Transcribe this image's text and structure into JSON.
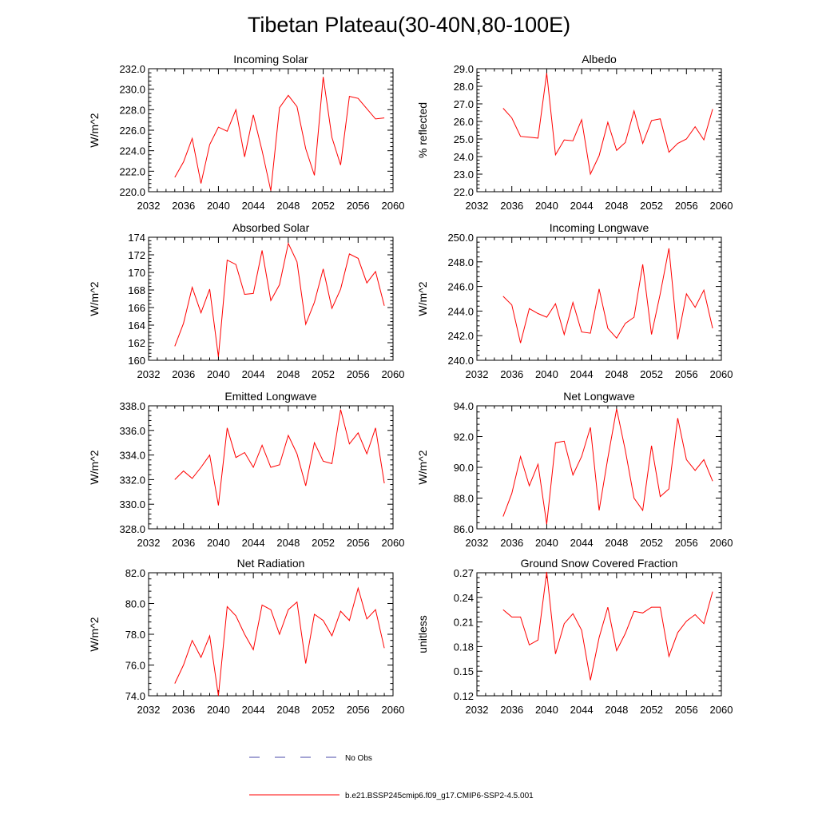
{
  "figure": {
    "title": "Tibetan Plateau(30-40N,80-100E)",
    "legend": [
      {
        "label": "No Obs",
        "color": "#4a4aa8",
        "dash": "dashed"
      },
      {
        "label": "b.e21.BSSP245cmip6.f09_g17.CMIP6-SSP2-4.5.001",
        "color": "#ff0000",
        "dash": "solid"
      }
    ]
  },
  "chart_data": [
    {
      "type": "line",
      "title": "Incoming Solar",
      "ylabel": "W/m^2",
      "xlim": [
        2032,
        2060
      ],
      "ylim": [
        220,
        232
      ],
      "xticks": [
        2032,
        2036,
        2040,
        2044,
        2048,
        2052,
        2056,
        2060
      ],
      "xtick_labels": [
        "2032",
        "2036",
        "2040",
        "2044",
        "2048",
        "2052",
        "2056",
        "2060"
      ],
      "yticks": [
        220,
        222,
        224,
        226,
        228,
        230,
        232
      ],
      "ytick_labels": [
        "220.0",
        "222.0",
        "224.0",
        "226.0",
        "228.0",
        "230.0",
        "232.0"
      ],
      "x": [
        2035,
        2036,
        2037,
        2038,
        2039,
        2040,
        2041,
        2042,
        2043,
        2044,
        2045,
        2046,
        2047,
        2048,
        2049,
        2050,
        2051,
        2052,
        2053,
        2054,
        2055,
        2056,
        2057,
        2058,
        2059
      ],
      "series": [
        {
          "color": "#ff0000",
          "values": [
            221.4,
            222.9,
            225.2,
            220.8,
            224.6,
            226.3,
            225.9,
            228.0,
            223.4,
            227.5,
            224.0,
            220.1,
            228.2,
            229.4,
            228.3,
            224.2,
            221.6,
            231.2,
            225.3,
            222.6,
            229.3,
            229.1,
            228.1,
            227.1,
            227.2
          ]
        }
      ]
    },
    {
      "type": "line",
      "title": "Albedo",
      "ylabel": "% reflected",
      "xlim": [
        2032,
        2060
      ],
      "ylim": [
        22,
        29
      ],
      "xticks": [
        2032,
        2036,
        2040,
        2044,
        2048,
        2052,
        2056,
        2060
      ],
      "xtick_labels": [
        "2032",
        "2036",
        "2040",
        "2044",
        "2048",
        "2052",
        "2056",
        "2060"
      ],
      "yticks": [
        22,
        23,
        24,
        25,
        26,
        27,
        28,
        29
      ],
      "ytick_labels": [
        "22.0",
        "23.0",
        "24.0",
        "25.0",
        "26.0",
        "27.0",
        "28.0",
        "29.0"
      ],
      "x": [
        2035,
        2036,
        2037,
        2038,
        2039,
        2040,
        2041,
        2042,
        2043,
        2044,
        2045,
        2046,
        2047,
        2048,
        2049,
        2050,
        2051,
        2052,
        2053,
        2054,
        2055,
        2056,
        2057,
        2058,
        2059
      ],
      "series": [
        {
          "color": "#ff0000",
          "values": [
            26.75,
            26.2,
            25.15,
            25.1,
            25.05,
            28.75,
            24.1,
            24.95,
            24.9,
            26.1,
            23.0,
            24.05,
            25.95,
            24.35,
            24.8,
            26.6,
            24.75,
            26.05,
            26.15,
            24.25,
            24.75,
            25.0,
            25.7,
            24.95,
            26.7
          ]
        }
      ]
    },
    {
      "type": "line",
      "title": "Absorbed Solar",
      "ylabel": "W/m^2",
      "xlim": [
        2032,
        2060
      ],
      "ylim": [
        160,
        174
      ],
      "xticks": [
        2032,
        2036,
        2040,
        2044,
        2048,
        2052,
        2056,
        2060
      ],
      "xtick_labels": [
        "2032",
        "2036",
        "2040",
        "2044",
        "2048",
        "2052",
        "2056",
        "2060"
      ],
      "yticks": [
        160,
        162,
        164,
        166,
        168,
        170,
        172,
        174
      ],
      "ytick_labels": [
        "160",
        "162",
        "164",
        "166",
        "168",
        "170",
        "172",
        "174"
      ],
      "x": [
        2035,
        2036,
        2037,
        2038,
        2039,
        2040,
        2041,
        2042,
        2043,
        2044,
        2045,
        2046,
        2047,
        2048,
        2049,
        2050,
        2051,
        2052,
        2053,
        2054,
        2055,
        2056,
        2057,
        2058,
        2059
      ],
      "series": [
        {
          "color": "#ff0000",
          "values": [
            161.6,
            164.2,
            168.3,
            165.4,
            168.1,
            160.4,
            171.4,
            170.9,
            167.5,
            167.6,
            172.5,
            166.8,
            168.6,
            173.3,
            171.2,
            164.1,
            166.6,
            170.4,
            165.9,
            168.1,
            172.1,
            171.6,
            168.8,
            170.1,
            166.2
          ]
        }
      ]
    },
    {
      "type": "line",
      "title": "Incoming Longwave",
      "ylabel": "W/m^2",
      "xlim": [
        2032,
        2060
      ],
      "ylim": [
        240,
        250
      ],
      "xticks": [
        2032,
        2036,
        2040,
        2044,
        2048,
        2052,
        2056,
        2060
      ],
      "xtick_labels": [
        "2032",
        "2036",
        "2040",
        "2044",
        "2048",
        "2052",
        "2056",
        "2060"
      ],
      "yticks": [
        240,
        242,
        244,
        246,
        248,
        250
      ],
      "ytick_labels": [
        "240.0",
        "242.0",
        "244.0",
        "246.0",
        "248.0",
        "250.0"
      ],
      "x": [
        2035,
        2036,
        2037,
        2038,
        2039,
        2040,
        2041,
        2042,
        2043,
        2044,
        2045,
        2046,
        2047,
        2048,
        2049,
        2050,
        2051,
        2052,
        2053,
        2054,
        2055,
        2056,
        2057,
        2058,
        2059
      ],
      "series": [
        {
          "color": "#ff0000",
          "values": [
            245.2,
            244.5,
            241.4,
            244.2,
            243.8,
            243.5,
            244.6,
            242.1,
            244.7,
            242.3,
            242.2,
            245.8,
            242.6,
            241.8,
            243.0,
            243.5,
            247.8,
            242.1,
            245.4,
            249.1,
            241.7,
            245.4,
            244.3,
            245.7,
            242.6
          ]
        }
      ]
    },
    {
      "type": "line",
      "title": "Emitted Longwave",
      "ylabel": "W/m^2",
      "xlim": [
        2032,
        2060
      ],
      "ylim": [
        328,
        338
      ],
      "xticks": [
        2032,
        2036,
        2040,
        2044,
        2048,
        2052,
        2056,
        2060
      ],
      "xtick_labels": [
        "2032",
        "2036",
        "2040",
        "2044",
        "2048",
        "2052",
        "2056",
        "2060"
      ],
      "yticks": [
        328,
        330,
        332,
        334,
        336,
        338
      ],
      "ytick_labels": [
        "328.0",
        "330.0",
        "332.0",
        "334.0",
        "336.0",
        "338.0"
      ],
      "x": [
        2035,
        2036,
        2037,
        2038,
        2039,
        2040,
        2041,
        2042,
        2043,
        2044,
        2045,
        2046,
        2047,
        2048,
        2049,
        2050,
        2051,
        2052,
        2053,
        2054,
        2055,
        2056,
        2057,
        2058,
        2059
      ],
      "series": [
        {
          "color": "#ff0000",
          "values": [
            332.0,
            332.7,
            332.1,
            333.0,
            334.0,
            329.9,
            336.2,
            333.8,
            334.2,
            333.0,
            334.8,
            333.0,
            333.2,
            335.6,
            334.1,
            331.5,
            335.0,
            333.5,
            333.3,
            337.7,
            334.9,
            335.8,
            334.1,
            336.2,
            331.7
          ]
        }
      ]
    },
    {
      "type": "line",
      "title": "Net Longwave",
      "ylabel": "W/m^2",
      "xlim": [
        2032,
        2060
      ],
      "ylim": [
        86,
        94
      ],
      "xticks": [
        2032,
        2036,
        2040,
        2044,
        2048,
        2052,
        2056,
        2060
      ],
      "xtick_labels": [
        "2032",
        "2036",
        "2040",
        "2044",
        "2048",
        "2052",
        "2056",
        "2060"
      ],
      "yticks": [
        86,
        88,
        90,
        92,
        94
      ],
      "ytick_labels": [
        "86.0",
        "88.0",
        "90.0",
        "92.0",
        "94.0"
      ],
      "x": [
        2035,
        2036,
        2037,
        2038,
        2039,
        2040,
        2041,
        2042,
        2043,
        2044,
        2045,
        2046,
        2047,
        2048,
        2049,
        2050,
        2051,
        2052,
        2053,
        2054,
        2055,
        2056,
        2057,
        2058,
        2059
      ],
      "series": [
        {
          "color": "#ff0000",
          "values": [
            86.8,
            88.3,
            90.7,
            88.8,
            90.2,
            86.3,
            91.6,
            91.7,
            89.5,
            90.7,
            92.6,
            87.2,
            90.6,
            93.8,
            91.1,
            88.0,
            87.2,
            91.4,
            88.1,
            88.6,
            93.2,
            90.5,
            89.8,
            90.5,
            89.1
          ]
        }
      ]
    },
    {
      "type": "line",
      "title": "Net Radiation",
      "ylabel": "W/m^2",
      "xlim": [
        2032,
        2060
      ],
      "ylim": [
        74,
        82
      ],
      "xticks": [
        2032,
        2036,
        2040,
        2044,
        2048,
        2052,
        2056,
        2060
      ],
      "xtick_labels": [
        "2032",
        "2036",
        "2040",
        "2044",
        "2048",
        "2052",
        "2056",
        "2060"
      ],
      "yticks": [
        74,
        76,
        78,
        80,
        82
      ],
      "ytick_labels": [
        "74.0",
        "76.0",
        "78.0",
        "80.0",
        "82.0"
      ],
      "x": [
        2035,
        2036,
        2037,
        2038,
        2039,
        2040,
        2041,
        2042,
        2043,
        2044,
        2045,
        2046,
        2047,
        2048,
        2049,
        2050,
        2051,
        2052,
        2053,
        2054,
        2055,
        2056,
        2057,
        2058,
        2059
      ],
      "series": [
        {
          "color": "#ff0000",
          "values": [
            74.8,
            76.0,
            77.6,
            76.5,
            77.9,
            74.0,
            79.8,
            79.2,
            78.0,
            77.0,
            79.9,
            79.6,
            78.0,
            79.6,
            80.1,
            76.1,
            79.3,
            78.9,
            77.9,
            79.5,
            78.9,
            81.0,
            79.0,
            79.6,
            77.1
          ]
        }
      ]
    },
    {
      "type": "line",
      "title": "Ground Snow Covered Fraction",
      "ylabel": "unitless",
      "xlim": [
        2032,
        2060
      ],
      "ylim": [
        0.12,
        0.27
      ],
      "xticks": [
        2032,
        2036,
        2040,
        2044,
        2048,
        2052,
        2056,
        2060
      ],
      "xtick_labels": [
        "2032",
        "2036",
        "2040",
        "2044",
        "2048",
        "2052",
        "2056",
        "2060"
      ],
      "yticks": [
        0.12,
        0.15,
        0.18,
        0.21,
        0.24,
        0.27
      ],
      "ytick_labels": [
        "0.12",
        "0.15",
        "0.18",
        "0.21",
        "0.24",
        "0.27"
      ],
      "x": [
        2035,
        2036,
        2037,
        2038,
        2039,
        2040,
        2041,
        2042,
        2043,
        2044,
        2045,
        2046,
        2047,
        2048,
        2049,
        2050,
        2051,
        2052,
        2053,
        2054,
        2055,
        2056,
        2057,
        2058,
        2059
      ],
      "series": [
        {
          "color": "#ff0000",
          "values": [
            0.225,
            0.216,
            0.216,
            0.182,
            0.188,
            0.271,
            0.171,
            0.208,
            0.22,
            0.2,
            0.139,
            0.191,
            0.228,
            0.175,
            0.196,
            0.223,
            0.221,
            0.228,
            0.228,
            0.168,
            0.197,
            0.211,
            0.219,
            0.208,
            0.247
          ]
        }
      ]
    }
  ]
}
